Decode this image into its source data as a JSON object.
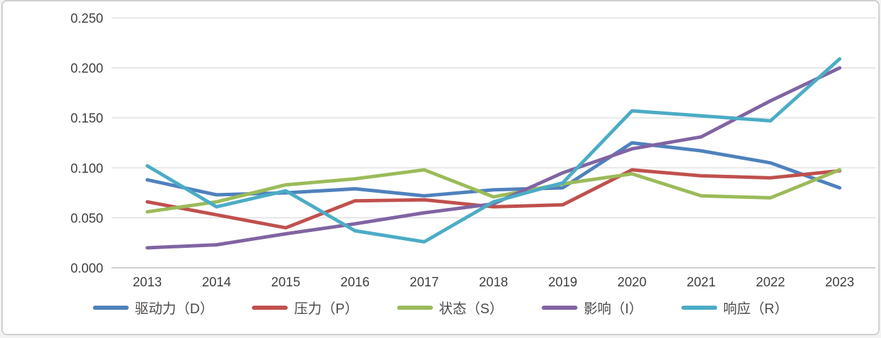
{
  "chart_data": {
    "type": "line",
    "title": "",
    "xlabel": "",
    "ylabel": "",
    "x": [
      "2013",
      "2014",
      "2015",
      "2016",
      "2017",
      "2018",
      "2019",
      "2020",
      "2021",
      "2022",
      "2023"
    ],
    "series": [
      {
        "key": "D",
        "name": "驱动力（D）",
        "color": "#4F81BD",
        "values": [
          0.088,
          0.073,
          0.075,
          0.079,
          0.072,
          0.078,
          0.08,
          0.125,
          0.117,
          0.105,
          0.08
        ]
      },
      {
        "key": "P",
        "name": "压力（P）",
        "color": "#C0504D",
        "values": [
          0.066,
          0.053,
          0.04,
          0.067,
          0.068,
          0.061,
          0.063,
          0.098,
          0.092,
          0.09,
          0.097
        ]
      },
      {
        "key": "S",
        "name": "状态（S）",
        "color": "#9BBB59",
        "values": [
          0.056,
          0.066,
          0.083,
          0.089,
          0.098,
          0.071,
          0.084,
          0.094,
          0.072,
          0.07,
          0.098
        ]
      },
      {
        "key": "I",
        "name": "影响（I）",
        "color": "#8064A2",
        "values": [
          0.02,
          0.023,
          0.034,
          0.044,
          0.055,
          0.064,
          0.095,
          0.119,
          0.131,
          0.167,
          0.2
        ]
      },
      {
        "key": "R",
        "name": "响应（R）",
        "color": "#4BACC6",
        "values": [
          0.102,
          0.061,
          0.077,
          0.037,
          0.026,
          0.066,
          0.085,
          0.157,
          0.152,
          0.147,
          0.209
        ]
      }
    ],
    "ylim": [
      0.0,
      0.25
    ],
    "ytick_step": 0.05,
    "ytick_labels": [
      "0.000",
      "0.050",
      "0.100",
      "0.150",
      "0.200",
      "0.250"
    ],
    "grid": "horizontal",
    "legend_position": "bottom"
  },
  "colors": {
    "background": "#FFFFFF",
    "gridline": "#D9D9D9",
    "axis_line": "#C0C0C0",
    "tick_text": "#3F3F3F",
    "legend_text": "#4A4A4A",
    "card_border": "#CFCFCF"
  }
}
